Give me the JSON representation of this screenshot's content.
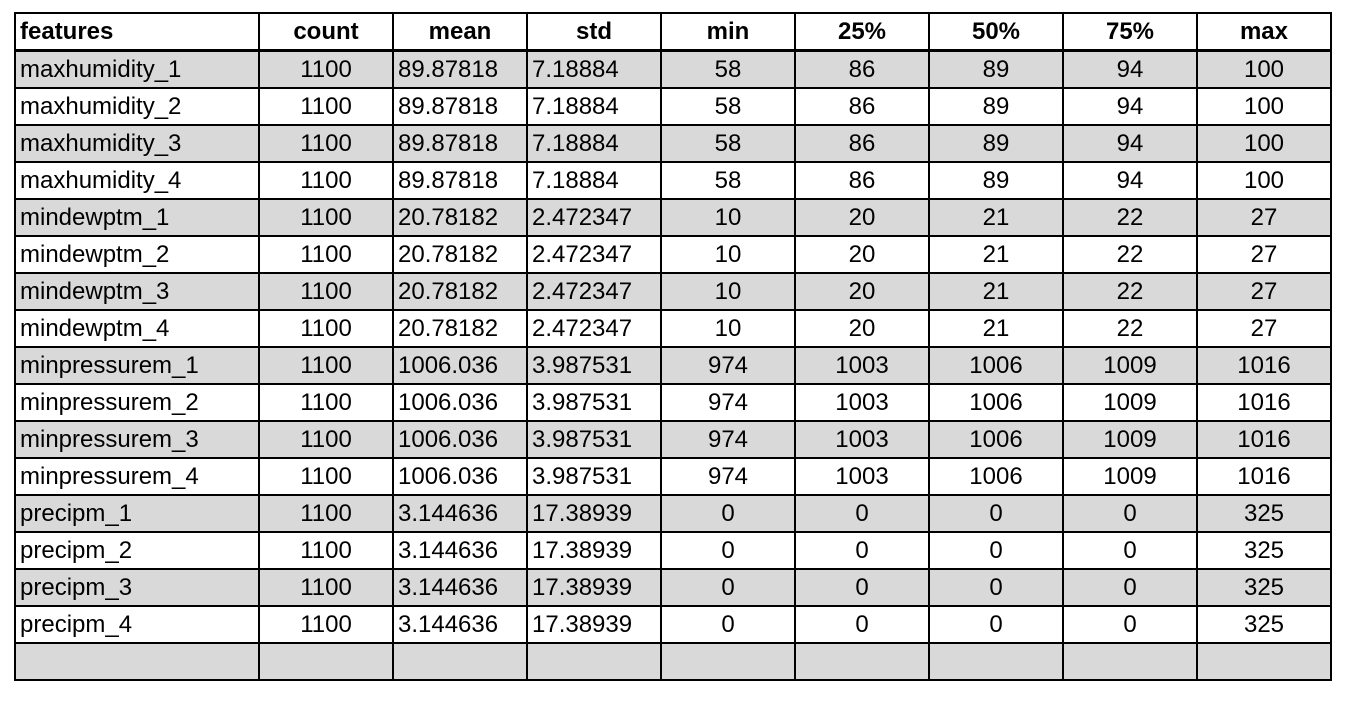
{
  "table": {
    "headers": [
      "features",
      "count",
      "mean",
      "std",
      "min",
      "25%",
      "50%",
      "75%",
      "max"
    ],
    "rows": [
      [
        "maxhumidity_1",
        "1100",
        "89.87818",
        "7.18884",
        "58",
        "86",
        "89",
        "94",
        "100"
      ],
      [
        "maxhumidity_2",
        "1100",
        "89.87818",
        "7.18884",
        "58",
        "86",
        "89",
        "94",
        "100"
      ],
      [
        "maxhumidity_3",
        "1100",
        "89.87818",
        "7.18884",
        "58",
        "86",
        "89",
        "94",
        "100"
      ],
      [
        "maxhumidity_4",
        "1100",
        "89.87818",
        "7.18884",
        "58",
        "86",
        "89",
        "94",
        "100"
      ],
      [
        "mindewptm_1",
        "1100",
        "20.78182",
        "2.472347",
        "10",
        "20",
        "21",
        "22",
        "27"
      ],
      [
        "mindewptm_2",
        "1100",
        "20.78182",
        "2.472347",
        "10",
        "20",
        "21",
        "22",
        "27"
      ],
      [
        "mindewptm_3",
        "1100",
        "20.78182",
        "2.472347",
        "10",
        "20",
        "21",
        "22",
        "27"
      ],
      [
        "mindewptm_4",
        "1100",
        "20.78182",
        "2.472347",
        "10",
        "20",
        "21",
        "22",
        "27"
      ],
      [
        "minpressurem_1",
        "1100",
        "1006.036",
        "3.987531",
        "974",
        "1003",
        "1006",
        "1009",
        "1016"
      ],
      [
        "minpressurem_2",
        "1100",
        "1006.036",
        "3.987531",
        "974",
        "1003",
        "1006",
        "1009",
        "1016"
      ],
      [
        "minpressurem_3",
        "1100",
        "1006.036",
        "3.987531",
        "974",
        "1003",
        "1006",
        "1009",
        "1016"
      ],
      [
        "minpressurem_4",
        "1100",
        "1006.036",
        "3.987531",
        "974",
        "1003",
        "1006",
        "1009",
        "1016"
      ],
      [
        "precipm_1",
        "1100",
        "3.144636",
        "17.38939",
        "0",
        "0",
        "0",
        "0",
        "325"
      ],
      [
        "precipm_2",
        "1100",
        "3.144636",
        "17.38939",
        "0",
        "0",
        "0",
        "0",
        "325"
      ],
      [
        "precipm_3",
        "1100",
        "3.144636",
        "17.38939",
        "0",
        "0",
        "0",
        "0",
        "325"
      ],
      [
        "precipm_4",
        "1100",
        "3.144636",
        "17.38939",
        "0",
        "0",
        "0",
        "0",
        "325"
      ],
      [
        "",
        "",
        "",
        "",
        "",
        "",
        "",
        "",
        ""
      ]
    ],
    "colors": {
      "shaded_row": "#d9d9d9",
      "plain_row": "#ffffff",
      "border": "#000000"
    }
  }
}
